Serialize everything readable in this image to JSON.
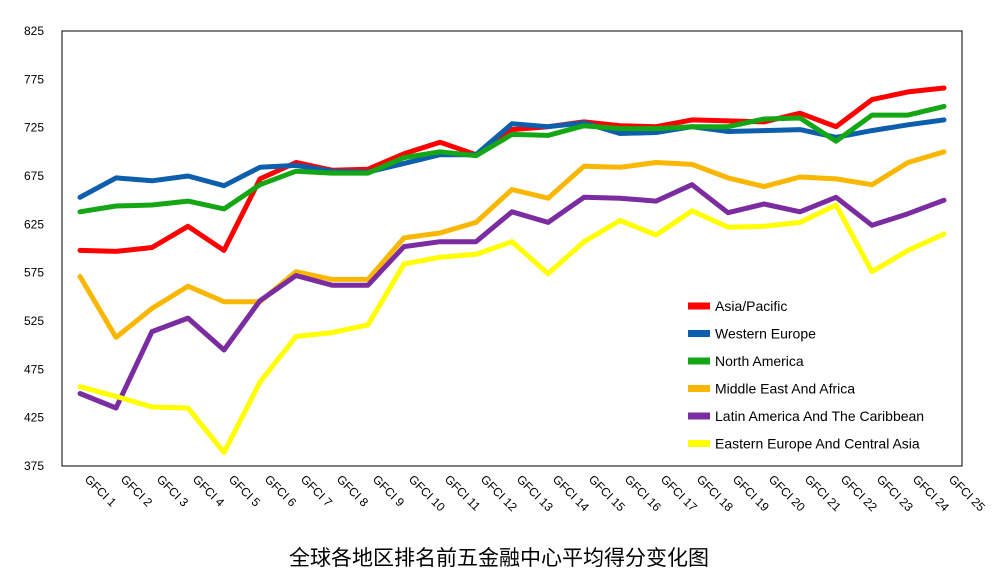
{
  "caption": "全球各地区排名前五金融中心平均得分变化图",
  "chart_data": {
    "type": "line",
    "title": "",
    "xlabel": "",
    "ylabel": "",
    "ylim": [
      375,
      825
    ],
    "yticks": [
      375,
      425,
      475,
      525,
      575,
      625,
      675,
      725,
      775,
      825
    ],
    "grid": false,
    "legend_position": "bottom-right",
    "categories": [
      "GFCI 1",
      "GFCI 2",
      "GFCI 3",
      "GFCI 4",
      "GFCI 5",
      "GFCI 6",
      "GFCI 7",
      "GFCI 8",
      "GFCI 9",
      "GFCI 10",
      "GFCI 11",
      "GFCI 12",
      "GFCI 13",
      "GFCI 14",
      "GFCI 15",
      "GFCI 16",
      "GFCI 17",
      "GFCI 18",
      "GFCI 19",
      "GFCI 20",
      "GFCI 21",
      "GFCI 22",
      "GFCI 23",
      "GFCI 24",
      "GFCI 25"
    ],
    "series": [
      {
        "name": "Asia/Pacific",
        "color": "#ff0000",
        "values": [
          598,
          597,
          601,
          623,
          598,
          672,
          689,
          681,
          682,
          698,
          710,
          697,
          723,
          726,
          731,
          727,
          726,
          733,
          732,
          731,
          740,
          726,
          754,
          762,
          766
        ]
      },
      {
        "name": "Western Europe",
        "color": "#0d5fad",
        "values": [
          653,
          673,
          670,
          675,
          665,
          684,
          686,
          680,
          679,
          688,
          697,
          697,
          729,
          726,
          730,
          719,
          720,
          726,
          721,
          722,
          723,
          715,
          722,
          728,
          733
        ]
      },
      {
        "name": "North America",
        "color": "#14a614",
        "values": [
          638,
          644,
          645,
          649,
          641,
          666,
          680,
          678,
          678,
          694,
          700,
          696,
          718,
          717,
          727,
          724,
          724,
          726,
          726,
          734,
          735,
          711,
          738,
          738,
          747
        ]
      },
      {
        "name": "Middle East And Africa",
        "color": "#f9b701",
        "values": [
          571,
          508,
          538,
          561,
          545,
          545,
          576,
          568,
          568,
          611,
          616,
          627,
          661,
          652,
          685,
          684,
          689,
          687,
          673,
          664,
          674,
          672,
          666,
          689,
          700
        ]
      },
      {
        "name": "Latin America And The Caribbean",
        "color": "#7a2ca0",
        "values": [
          450,
          435,
          514,
          528,
          495,
          546,
          572,
          562,
          562,
          602,
          607,
          607,
          638,
          627,
          653,
          652,
          649,
          666,
          637,
          646,
          638,
          653,
          624,
          636,
          650
        ]
      },
      {
        "name": "Eastern Europe And Central Asia",
        "color": "#ffff00",
        "values": [
          457,
          447,
          436,
          435,
          389,
          462,
          509,
          513,
          521,
          584,
          591,
          594,
          607,
          574,
          607,
          629,
          614,
          639,
          622,
          623,
          627,
          645,
          576,
          598,
          615
        ]
      }
    ]
  }
}
